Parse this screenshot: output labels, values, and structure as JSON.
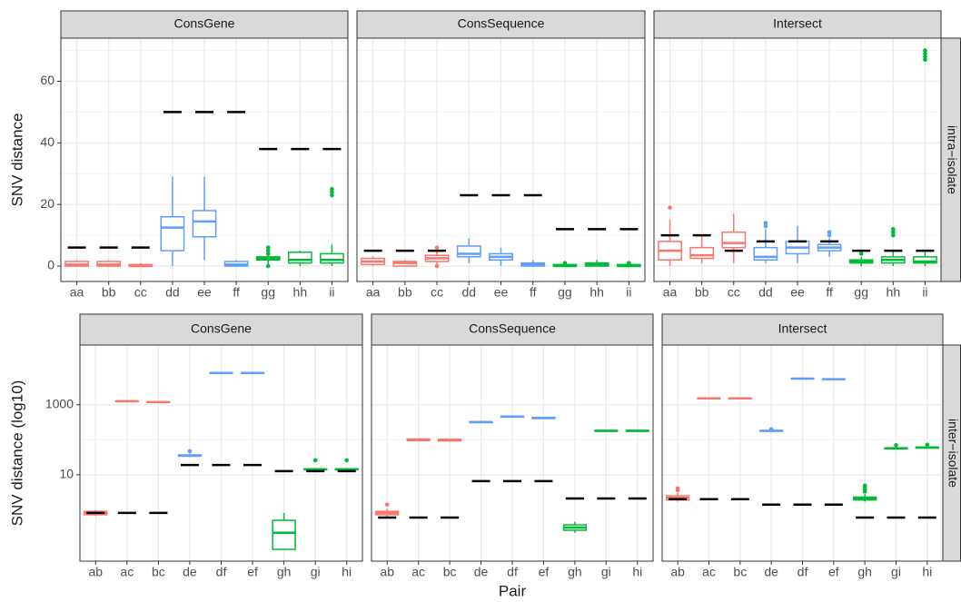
{
  "chart_data": [
    {
      "type": "box",
      "title": "ConsGene",
      "ylabel": "SNV distance",
      "log": false,
      "categories": [
        "aa",
        "bb",
        "cc",
        "dd",
        "ee",
        "ff",
        "gg",
        "hh",
        "ii"
      ],
      "colors": [
        "#F8766D",
        "#F8766D",
        "#F8766D",
        "#619CFF",
        "#619CFF",
        "#619CFF",
        "#00BA38",
        "#00BA38",
        "#00BA38"
      ],
      "stats": [
        {
          "low": 0,
          "q1": 0,
          "median": 0.5,
          "q3": 1.5,
          "high": 2,
          "outliers": []
        },
        {
          "low": 0,
          "q1": 0,
          "median": 0.5,
          "q3": 1.5,
          "high": 2,
          "outliers": []
        },
        {
          "low": 0,
          "q1": 0,
          "median": 0,
          "q3": 0.5,
          "high": 1,
          "outliers": []
        },
        {
          "low": 0,
          "q1": 5,
          "median": 12.5,
          "q3": 16,
          "high": 29,
          "outliers": []
        },
        {
          "low": 2,
          "q1": 9.5,
          "median": 14.5,
          "q3": 18,
          "high": 29,
          "outliers": []
        },
        {
          "low": 0,
          "q1": 0,
          "median": 0.5,
          "q3": 1.5,
          "high": 2,
          "outliers": []
        },
        {
          "low": 0,
          "q1": 2,
          "median": 2.5,
          "q3": 3,
          "high": 3.5,
          "outliers": [
            0,
            4,
            5,
            6
          ]
        },
        {
          "low": 0,
          "q1": 1,
          "median": 2,
          "q3": 4.5,
          "high": 5,
          "outliers": []
        },
        {
          "low": 0,
          "q1": 1,
          "median": 2,
          "q3": 4,
          "high": 7,
          "outliers": [
            23,
            24,
            25
          ]
        }
      ],
      "thresholds": [
        6,
        6,
        6,
        50,
        50,
        50,
        38,
        38,
        38
      ],
      "ylim": [
        -5,
        74
      ],
      "yticks": [
        0,
        20,
        40,
        60
      ],
      "minor_yticks": [
        10,
        30,
        50,
        70
      ]
    },
    {
      "type": "box",
      "title": "ConsSequence",
      "log": false,
      "categories": [
        "aa",
        "bb",
        "cc",
        "dd",
        "ee",
        "ff",
        "gg",
        "hh",
        "ii"
      ],
      "colors": [
        "#F8766D",
        "#F8766D",
        "#F8766D",
        "#619CFF",
        "#619CFF",
        "#619CFF",
        "#00BA38",
        "#00BA38",
        "#00BA38"
      ],
      "stats": [
        {
          "low": 0,
          "q1": 0.5,
          "median": 1.5,
          "q3": 2.5,
          "high": 3,
          "outliers": []
        },
        {
          "low": 0,
          "q1": 0,
          "median": 1,
          "q3": 1.5,
          "high": 2,
          "outliers": []
        },
        {
          "low": 0,
          "q1": 1.5,
          "median": 2.5,
          "q3": 3.5,
          "high": 5,
          "outliers": [
            0,
            6
          ]
        },
        {
          "low": 1,
          "q1": 3,
          "median": 4,
          "q3": 6.5,
          "high": 9,
          "outliers": []
        },
        {
          "low": 0,
          "q1": 2,
          "median": 3,
          "q3": 4,
          "high": 6,
          "outliers": []
        },
        {
          "low": 0,
          "q1": 0,
          "median": 0.5,
          "q3": 1,
          "high": 2,
          "outliers": []
        },
        {
          "low": 0,
          "q1": 0,
          "median": 0,
          "q3": 0.5,
          "high": 0.5,
          "outliers": [
            1
          ]
        },
        {
          "low": 0,
          "q1": 0,
          "median": 0.5,
          "q3": 1,
          "high": 2,
          "outliers": []
        },
        {
          "low": 0,
          "q1": 0,
          "median": 0,
          "q3": 0.5,
          "high": 0.5,
          "outliers": [
            1
          ]
        }
      ],
      "thresholds": [
        5,
        5,
        5,
        23,
        23,
        23,
        12,
        12,
        12
      ],
      "ylim": [
        -5,
        74
      ],
      "yticks": [
        0,
        20,
        40,
        60
      ],
      "minor_yticks": [
        10,
        30,
        50,
        70
      ]
    },
    {
      "type": "box",
      "title": "Intersect",
      "strip": "intra−isolate",
      "log": false,
      "categories": [
        "aa",
        "bb",
        "cc",
        "dd",
        "ee",
        "ff",
        "gg",
        "hh",
        "ii"
      ],
      "colors": [
        "#F8766D",
        "#F8766D",
        "#F8766D",
        "#619CFF",
        "#619CFF",
        "#619CFF",
        "#00BA38",
        "#00BA38",
        "#00BA38"
      ],
      "stats": [
        {
          "low": 0,
          "q1": 2,
          "median": 5,
          "q3": 8,
          "high": 15,
          "outliers": [
            19
          ]
        },
        {
          "low": 1,
          "q1": 2.5,
          "median": 3.5,
          "q3": 6,
          "high": 10,
          "outliers": []
        },
        {
          "low": 1,
          "q1": 6,
          "median": 7.5,
          "q3": 11,
          "high": 17,
          "outliers": []
        },
        {
          "low": 1,
          "q1": 2,
          "median": 3,
          "q3": 6,
          "high": 12,
          "outliers": [
            13,
            14
          ]
        },
        {
          "low": 1,
          "q1": 4,
          "median": 6,
          "q3": 8,
          "high": 13,
          "outliers": []
        },
        {
          "low": 3,
          "q1": 5,
          "median": 6,
          "q3": 7,
          "high": 9,
          "outliers": [
            10,
            11
          ]
        },
        {
          "low": 0,
          "q1": 1,
          "median": 1.5,
          "q3": 2,
          "high": 3,
          "outliers": [
            4
          ]
        },
        {
          "low": 0,
          "q1": 1,
          "median": 2,
          "q3": 3,
          "high": 5,
          "outliers": [
            10,
            11,
            12
          ]
        },
        {
          "low": 0,
          "q1": 1,
          "median": 1.5,
          "q3": 3,
          "high": 5,
          "outliers": [
            67,
            68,
            69,
            70
          ]
        }
      ],
      "thresholds": [
        10,
        10,
        5,
        8,
        8,
        8,
        5,
        5,
        5
      ],
      "ylim": [
        -5,
        74
      ],
      "yticks": [
        0,
        20,
        40,
        60
      ],
      "minor_yticks": [
        10,
        30,
        50,
        70
      ]
    },
    {
      "type": "box",
      "title": "ConsGene",
      "ylabel": "SNV distance (log10)",
      "log": true,
      "categories": [
        "ab",
        "ac",
        "bc",
        "de",
        "df",
        "ef",
        "gh",
        "gi",
        "hi"
      ],
      "colors": [
        "#F8766D",
        "#F8766D",
        "#F8766D",
        "#619CFF",
        "#619CFF",
        "#619CFF",
        "#00BA38",
        "#00BA38",
        "#00BA38"
      ],
      "stats": [
        {
          "low": 0.66,
          "q1": 0.72,
          "median": 0.81,
          "q3": 0.9,
          "high": 0.98,
          "outliers": []
        },
        {
          "low": 1220,
          "q1": 1240,
          "median": 1260,
          "q3": 1280,
          "high": 1300,
          "outliers": []
        },
        {
          "low": 1150,
          "q1": 1170,
          "median": 1190,
          "q3": 1210,
          "high": 1230,
          "outliers": []
        },
        {
          "low": 32,
          "q1": 34,
          "median": 35,
          "q3": 37,
          "high": 40,
          "outliers": [
            47
          ]
        },
        {
          "low": 7900,
          "q1": 8000,
          "median": 8100,
          "q3": 8200,
          "high": 8300,
          "outliers": []
        },
        {
          "low": 7900,
          "q1": 8000,
          "median": 8100,
          "q3": 8200,
          "high": 8300,
          "outliers": []
        },
        {
          "low": 0.074,
          "q1": 0.074,
          "median": 0.22,
          "q3": 0.5,
          "high": 0.81,
          "outliers": []
        },
        {
          "low": 13.5,
          "q1": 14,
          "median": 14.3,
          "q3": 14.7,
          "high": 15.5,
          "outliers": [
            26
          ]
        },
        {
          "low": 13.5,
          "q1": 14,
          "median": 14.3,
          "q3": 14.7,
          "high": 15.5,
          "outliers": [
            26
          ]
        }
      ],
      "thresholds": [
        0.81,
        0.81,
        0.81,
        19,
        19,
        19,
        12.7,
        12.7,
        12.7
      ],
      "ylim": [
        0.034,
        51000
      ],
      "yticks": [
        10,
        1000
      ],
      "minor_yticks": [
        100
      ]
    },
    {
      "type": "box",
      "title": "ConsSequence",
      "xlabel": "Pair",
      "log": true,
      "categories": [
        "ab",
        "ac",
        "bc",
        "de",
        "df",
        "ef",
        "gh",
        "gi",
        "hi"
      ],
      "colors": [
        "#F8766D",
        "#F8766D",
        "#F8766D",
        "#619CFF",
        "#619CFF",
        "#619CFF",
        "#00BA38",
        "#00BA38",
        "#00BA38"
      ],
      "stats": [
        {
          "low": 0.62,
          "q1": 0.72,
          "median": 0.81,
          "q3": 0.9,
          "high": 1.05,
          "outliers": [
            1.4
          ]
        },
        {
          "low": 90,
          "q1": 95,
          "median": 100,
          "q3": 105,
          "high": 110,
          "outliers": []
        },
        {
          "low": 88,
          "q1": 93,
          "median": 98,
          "q3": 103,
          "high": 108,
          "outliers": []
        },
        {
          "low": 300,
          "q1": 310,
          "median": 320,
          "q3": 330,
          "high": 340,
          "outliers": []
        },
        {
          "low": 430,
          "q1": 445,
          "median": 460,
          "q3": 475,
          "high": 490,
          "outliers": []
        },
        {
          "low": 390,
          "q1": 405,
          "median": 420,
          "q3": 435,
          "high": 450,
          "outliers": []
        },
        {
          "low": 0.22,
          "q1": 0.26,
          "median": 0.31,
          "q3": 0.37,
          "high": 0.45,
          "outliers": []
        },
        {
          "low": 170,
          "q1": 175,
          "median": 180,
          "q3": 185,
          "high": 190,
          "outliers": []
        },
        {
          "low": 170,
          "q1": 175,
          "median": 180,
          "q3": 185,
          "high": 190,
          "outliers": []
        }
      ],
      "thresholds": [
        0.6,
        0.6,
        0.6,
        6.6,
        6.6,
        6.6,
        2.1,
        2.1,
        2.1
      ],
      "ylim": [
        0.034,
        51000
      ],
      "yticks": [
        10,
        1000
      ],
      "minor_yticks": [
        100
      ]
    },
    {
      "type": "box",
      "title": "Intersect",
      "strip": "inter−isolate",
      "log": true,
      "categories": [
        "ab",
        "ac",
        "bc",
        "de",
        "df",
        "ef",
        "gh",
        "gi",
        "hi"
      ],
      "colors": [
        "#F8766D",
        "#F8766D",
        "#F8766D",
        "#619CFF",
        "#619CFF",
        "#619CFF",
        "#00BA38",
        "#00BA38",
        "#00BA38"
      ],
      "stats": [
        {
          "low": 1.7,
          "q1": 1.9,
          "median": 2.2,
          "q3": 2.5,
          "high": 3.0,
          "outliers": [
            3.6,
            4.1
          ]
        },
        {
          "low": 1450,
          "q1": 1490,
          "median": 1520,
          "q3": 1550,
          "high": 1590,
          "outliers": []
        },
        {
          "low": 1450,
          "q1": 1490,
          "median": 1520,
          "q3": 1550,
          "high": 1590,
          "outliers": []
        },
        {
          "low": 170,
          "q1": 175,
          "median": 180,
          "q3": 185,
          "high": 190,
          "outliers": [
            200
          ]
        },
        {
          "low": 5400,
          "q1": 5500,
          "median": 5600,
          "q3": 5700,
          "high": 5800,
          "outliers": []
        },
        {
          "low": 5200,
          "q1": 5300,
          "median": 5400,
          "q3": 5500,
          "high": 5600,
          "outliers": []
        },
        {
          "low": 1.7,
          "q1": 1.9,
          "median": 2.1,
          "q3": 2.3,
          "high": 2.8,
          "outliers": [
            3.3,
            3.8,
            4.3,
            4.9
          ]
        },
        {
          "low": 53,
          "q1": 55,
          "median": 57,
          "q3": 59,
          "high": 62,
          "outliers": [
            70
          ]
        },
        {
          "low": 56,
          "q1": 58,
          "median": 60,
          "q3": 62,
          "high": 65,
          "outliers": [
            72
          ]
        }
      ],
      "thresholds": [
        2.0,
        2.0,
        2.0,
        1.4,
        1.4,
        1.4,
        0.6,
        0.6,
        0.6
      ],
      "ylim": [
        0.034,
        51000
      ],
      "yticks": [
        10,
        1000
      ],
      "minor_yticks": [
        100
      ]
    }
  ]
}
